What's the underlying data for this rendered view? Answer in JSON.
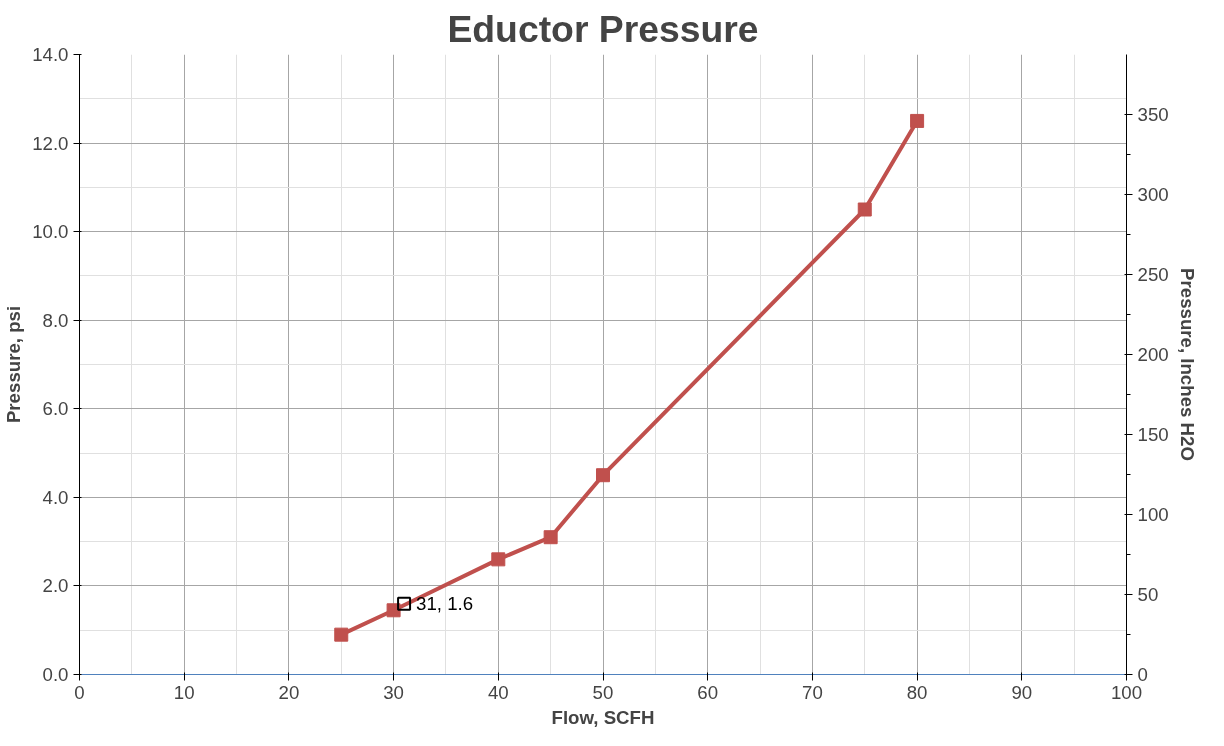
{
  "chart_data": {
    "type": "line",
    "title": "Eductor Pressure",
    "xlabel": "Flow, SCFH",
    "ylabel": "Pressure, psi",
    "y2label": "Pressure, Inches H2O",
    "series": [
      {
        "color": "#c0504d",
        "x": [
          25,
          30,
          40,
          45,
          50,
          75,
          80
        ],
        "values": [
          0.9,
          1.45,
          2.6,
          3.1,
          4.5,
          10.5,
          12.5
        ]
      },
      {
        "type": "scatter",
        "color": "#000000",
        "x": [
          31
        ],
        "values": [
          1.6
        ],
        "value_labels": [
          "31, 1.6"
        ]
      }
    ],
    "xlim": [
      0,
      100
    ],
    "xticks": [
      0,
      10,
      20,
      30,
      40,
      50,
      60,
      70,
      80,
      90,
      100
    ],
    "ylim": [
      0,
      14
    ],
    "yticks": [
      {
        "value": 0,
        "label": "0.0"
      },
      {
        "value": 2,
        "label": "2.0"
      },
      {
        "value": 4,
        "label": "4.0"
      },
      {
        "value": 6,
        "label": "6.0"
      },
      {
        "value": 8,
        "label": "8.0"
      },
      {
        "value": 10,
        "label": "10.0"
      },
      {
        "value": 12,
        "label": "12.0"
      },
      {
        "value": 14,
        "label": "14.0"
      }
    ],
    "y2lim": [
      0,
      387.5
    ],
    "y2ticks": [
      0,
      50,
      100,
      150,
      200,
      250,
      300,
      350
    ],
    "grid": true,
    "marker": "square",
    "line_style": "solid"
  }
}
